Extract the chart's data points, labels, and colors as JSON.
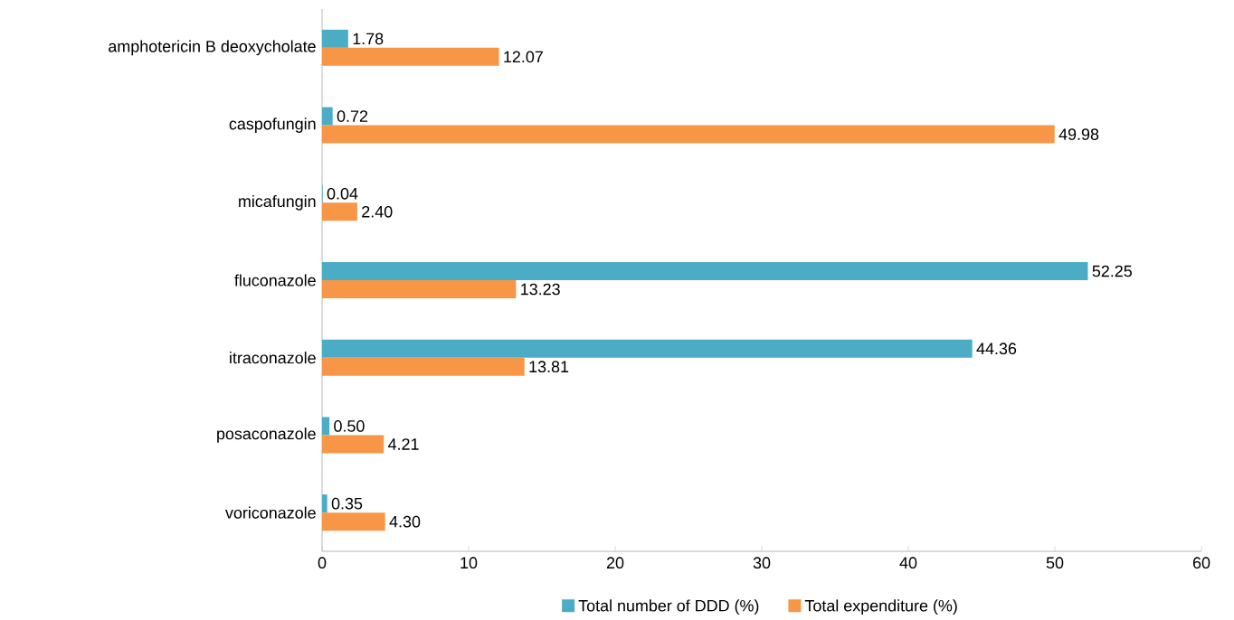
{
  "chart_data": {
    "type": "bar",
    "orientation": "horizontal",
    "categories": [
      "amphotericin B deoxycholate",
      "caspofungin",
      "micafungin",
      "fluconazole",
      "itraconazole",
      "posaconazole",
      "voriconazole"
    ],
    "series": [
      {
        "name": "Total number of DDD (%)",
        "color": "#4bacc6",
        "values": [
          1.78,
          0.72,
          0.04,
          52.25,
          44.36,
          0.5,
          0.35
        ],
        "value_labels": [
          "1.78",
          "0.72",
          "0.04",
          "52.25",
          "44.36",
          "0.50",
          "0.35"
        ]
      },
      {
        "name": "Total expenditure (%)",
        "color": "#f79646",
        "values": [
          12.07,
          49.98,
          2.4,
          13.23,
          13.81,
          4.21,
          4.3
        ],
        "value_labels": [
          "12.07",
          "49.98",
          "2.40",
          "13.23",
          "13.81",
          "4.21",
          "4.30"
        ]
      }
    ],
    "xlim": [
      0,
      60
    ],
    "xticks": [
      0,
      10,
      20,
      30,
      40,
      50,
      60
    ],
    "grid": false,
    "legend": "bottom"
  }
}
